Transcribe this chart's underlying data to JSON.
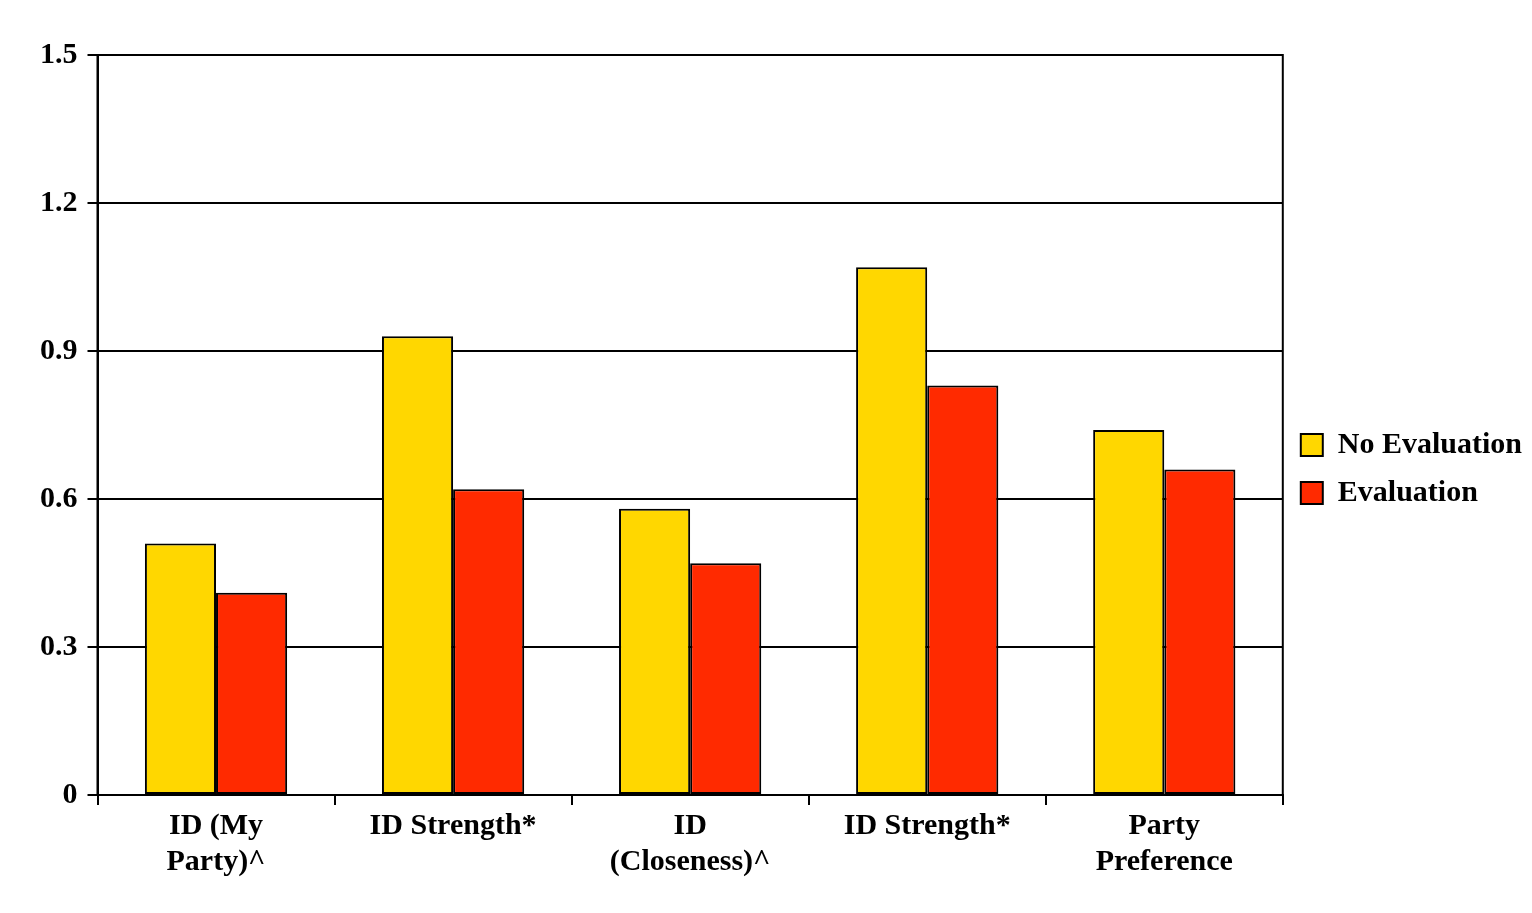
{
  "chart_data": {
    "type": "bar",
    "categories": [
      "ID (My Party)^",
      "ID Strength*",
      "ID (Closeness)^",
      "ID Strength*",
      "Party Preference"
    ],
    "series": [
      {
        "name": "No Evaluation",
        "color": "#ffd700",
        "values": [
          0.51,
          0.93,
          0.58,
          1.07,
          0.74
        ]
      },
      {
        "name": "Evaluation",
        "color": "#ff2a00",
        "values": [
          0.41,
          0.62,
          0.47,
          0.83,
          0.66
        ]
      }
    ],
    "ylim": [
      0,
      1.5
    ],
    "yticks": [
      0,
      0.3,
      0.6,
      0.9,
      1.2,
      1.5
    ],
    "grid": "y",
    "legend": "right"
  }
}
